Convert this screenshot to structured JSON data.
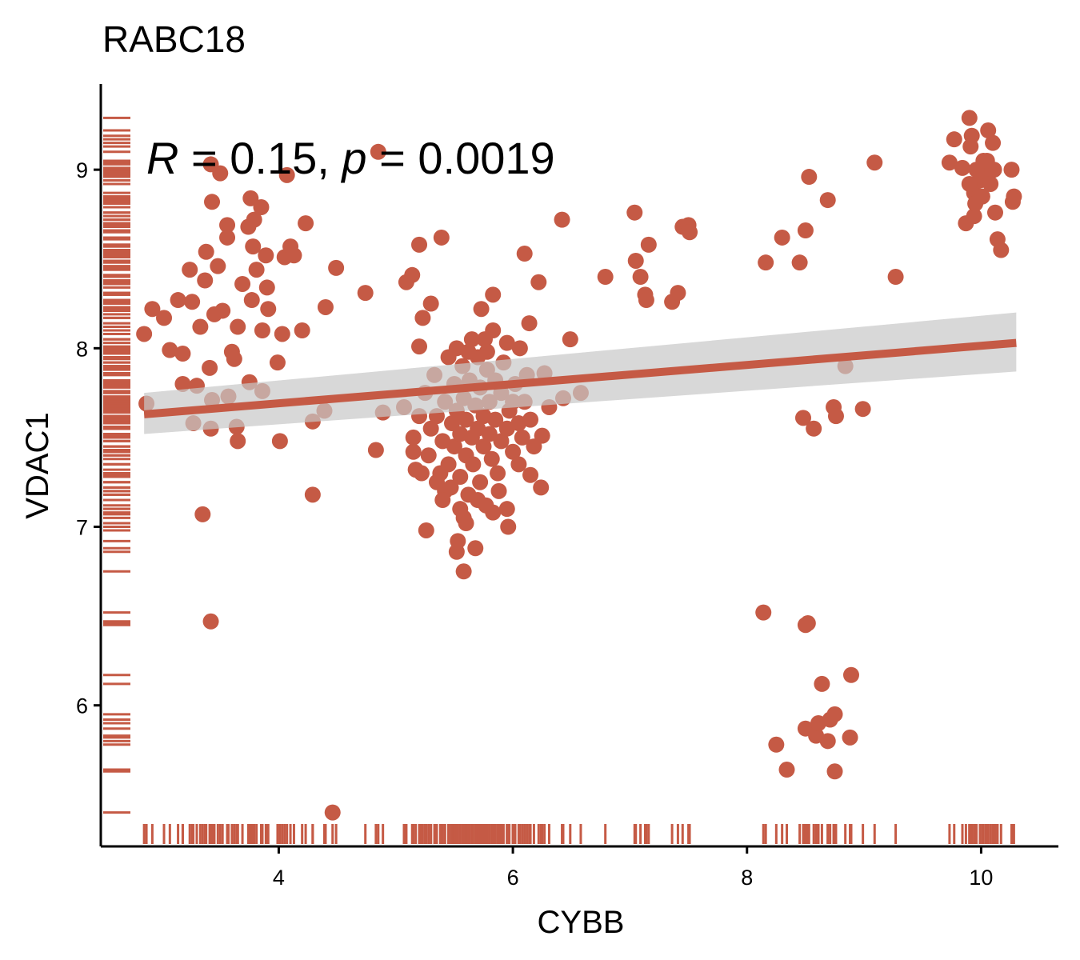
{
  "chart_data": {
    "type": "scatter",
    "title": "RABC18",
    "x_label": "CYBB",
    "y_label": "VDAC1",
    "annotation": [
      "R",
      " = 0.15, ",
      "p",
      " = 0.0019"
    ],
    "color": "#c55a45",
    "rug": true,
    "xlim": [
      2.48,
      10.66
    ],
    "ylim": [
      5.21,
      9.48
    ],
    "xticks": [
      4,
      6,
      8,
      10
    ],
    "yticks": [
      6,
      7,
      8,
      9
    ],
    "fit": {
      "x": [
        2.85,
        10.3
      ],
      "values": [
        7.63,
        8.03
      ],
      "lower": [
        7.52,
        7.87
      ],
      "upper": [
        7.75,
        8.2
      ],
      "color": "#c55a45",
      "band_color": "#c8c8c8"
    },
    "x": [
      2.85,
      2.87,
      2.92,
      3.02,
      3.07,
      3.14,
      3.18,
      3.18,
      3.24,
      3.26,
      3.27,
      3.3,
      3.33,
      3.35,
      3.37,
      3.38,
      3.41,
      3.42,
      3.42,
      3.43,
      3.42,
      3.43,
      3.45,
      3.48,
      3.5,
      3.52,
      3.56,
      3.56,
      3.57,
      3.6,
      3.62,
      3.64,
      3.65,
      3.65,
      3.69,
      3.74,
      3.75,
      3.76,
      3.77,
      3.78,
      3.79,
      3.81,
      3.85,
      3.86,
      3.86,
      3.89,
      3.9,
      3.91,
      3.99,
      4.01,
      4.03,
      4.05,
      4.07,
      4.1,
      4.13,
      4.2,
      4.23,
      4.29,
      4.29,
      4.39,
      4.4,
      4.46,
      4.49,
      4.74,
      4.83,
      4.85,
      4.89,
      5.07,
      5.09,
      5.14,
      5.15,
      5.17,
      5.2,
      5.2,
      5.23,
      5.26,
      5.3,
      5.39,
      5.42,
      5.52,
      5.53,
      5.58,
      5.6,
      5.68,
      5.73,
      5.76,
      5.83,
      5.83,
      5.95,
      5.96,
      6.06,
      6.1,
      6.14,
      6.15,
      6.22,
      6.24,
      6.25,
      6.27,
      6.31,
      6.42,
      6.43,
      6.49,
      6.58,
      5.3,
      5.35,
      5.4,
      5.42,
      5.45,
      5.48,
      5.5,
      5.5,
      5.52,
      5.55,
      5.55,
      5.57,
      5.58,
      5.6,
      5.6,
      5.62,
      5.63,
      5.65,
      5.66,
      5.68,
      5.7,
      5.7,
      5.72,
      5.72,
      5.75,
      5.75,
      5.77,
      5.78,
      5.8,
      5.8,
      5.82,
      5.85,
      5.85,
      5.87,
      5.9,
      5.9,
      5.92,
      5.95,
      5.97,
      6.0,
      6.02,
      6.05,
      6.08,
      6.1,
      6.12,
      6.15,
      5.25,
      5.28,
      5.33,
      5.38,
      5.45,
      5.47,
      5.52,
      5.58,
      5.65,
      5.7,
      5.62,
      5.78,
      5.88,
      6.0,
      5.4,
      6.05,
      5.15,
      5.2,
      5.22,
      6.18,
      5.35,
      5.95,
      5.55,
      5.83,
      6.79,
      7.04,
      7.05,
      7.09,
      7.13,
      7.14,
      7.16,
      7.36,
      7.41,
      7.45,
      7.5,
      7.51,
      8.14,
      8.16,
      8.25,
      8.3,
      8.34,
      8.45,
      8.48,
      8.5,
      8.5,
      8.52,
      8.53,
      8.5,
      8.57,
      8.59,
      8.61,
      8.64,
      8.69,
      8.69,
      8.71,
      8.74,
      8.75,
      8.76,
      8.75,
      8.84,
      8.88,
      8.89,
      8.99,
      9.09,
      9.27,
      9.9,
      9.77,
      9.73,
      9.84,
      9.92,
      9.91,
      10.06,
      10.1,
      9.87,
      9.94,
      9.94,
      9.99,
      10.02,
      10.04,
      9.95,
      10.08,
      10.11,
      10.01,
      10.12,
      10.14,
      10.17,
      10.26,
      10.27,
      10.28,
      9.96,
      10.05,
      9.9
    ],
    "values": [
      8.08,
      7.69,
      8.22,
      8.17,
      7.99,
      8.27,
      7.97,
      7.8,
      8.44,
      8.26,
      7.58,
      7.79,
      8.12,
      7.07,
      8.38,
      8.54,
      7.89,
      6.47,
      9.03,
      8.82,
      7.55,
      7.71,
      8.19,
      8.46,
      8.98,
      8.21,
      8.69,
      8.62,
      7.73,
      7.98,
      7.94,
      7.56,
      7.48,
      8.12,
      8.36,
      8.68,
      7.81,
      8.84,
      8.27,
      8.57,
      8.72,
      8.44,
      8.79,
      7.76,
      8.1,
      8.52,
      8.34,
      8.22,
      7.92,
      7.48,
      8.08,
      8.51,
      8.97,
      8.57,
      8.52,
      8.1,
      8.7,
      7.59,
      7.18,
      7.65,
      8.23,
      5.4,
      8.45,
      8.31,
      7.43,
      9.1,
      7.64,
      7.67,
      8.37,
      8.41,
      7.42,
      7.32,
      8.58,
      8.01,
      8.17,
      6.98,
      8.25,
      8.62,
      7.2,
      6.86,
      6.92,
      6.75,
      7.02,
      6.88,
      8.22,
      8.05,
      8.3,
      7.08,
      8.03,
      7.0,
      8.0,
      8.53,
      8.14,
      7.29,
      8.37,
      7.22,
      7.51,
      7.86,
      7.67,
      8.72,
      7.72,
      8.05,
      7.75,
      7.55,
      7.62,
      7.48,
      7.7,
      7.35,
      7.58,
      7.8,
      7.45,
      7.65,
      7.28,
      7.52,
      7.9,
      7.72,
      7.4,
      7.6,
      7.18,
      7.82,
      7.5,
      7.35,
      7.68,
      7.95,
      7.55,
      7.25,
      7.78,
      7.45,
      7.62,
      7.12,
      7.88,
      7.52,
      7.7,
      7.38,
      7.6,
      7.82,
      7.3,
      7.48,
      7.75,
      7.92,
      7.55,
      7.65,
      7.42,
      7.8,
      7.58,
      7.5,
      7.7,
      7.85,
      7.6,
      7.75,
      7.4,
      7.85,
      7.3,
      7.95,
      7.22,
      8.0,
      7.05,
      8.05,
      7.15,
      7.98,
      7.98,
      7.2,
      7.7,
      7.15,
      7.35,
      7.5,
      7.62,
      7.3,
      7.45,
      7.25,
      7.1,
      7.1,
      8.1,
      8.4,
      8.76,
      8.49,
      8.4,
      8.3,
      8.27,
      8.58,
      8.26,
      8.31,
      8.68,
      8.69,
      8.65,
      6.52,
      8.48,
      5.78,
      8.62,
      5.64,
      8.48,
      7.61,
      8.66,
      5.87,
      6.46,
      8.96,
      6.45,
      7.55,
      5.83,
      5.9,
      6.12,
      8.83,
      5.8,
      5.92,
      7.67,
      5.95,
      7.62,
      5.63,
      7.9,
      5.82,
      6.17,
      7.66,
      9.04,
      8.4,
      9.29,
      9.17,
      9.04,
      9.01,
      9.19,
      9.13,
      9.22,
      9.15,
      8.7,
      8.74,
      8.87,
      8.94,
      9.05,
      8.99,
      8.81,
      8.92,
      9.0,
      8.85,
      8.76,
      8.61,
      8.55,
      9.0,
      8.82,
      8.85,
      9.0,
      9.05,
      8.92
    ]
  }
}
